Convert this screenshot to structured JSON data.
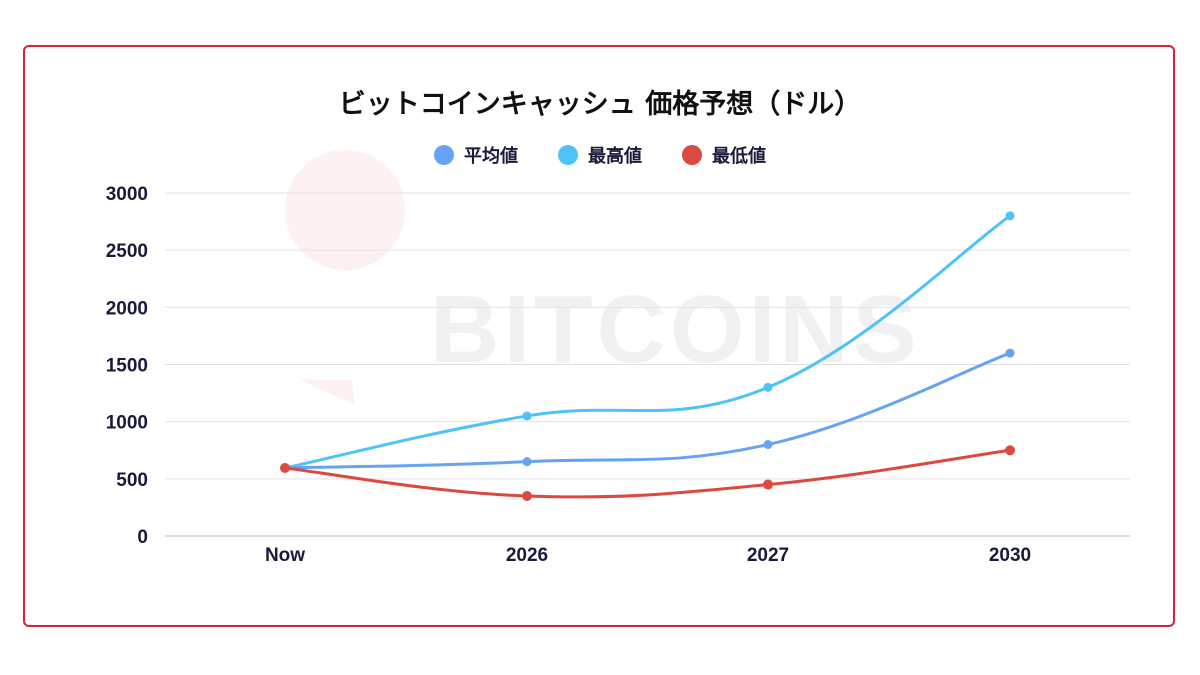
{
  "chart_data": {
    "type": "line",
    "title": "ビットコインキャッシュ 価格予想（ドル）",
    "categories": [
      "Now",
      "2026",
      "2027",
      "2030"
    ],
    "series": [
      {
        "name": "平均値",
        "color": "#67a3f3",
        "values": [
          595,
          650,
          800,
          1600
        ]
      },
      {
        "name": "最高値",
        "color": "#4ec3f7",
        "values": [
          595,
          1050,
          1300,
          2800
        ]
      },
      {
        "name": "最低値",
        "color": "#db4a40",
        "values": [
          595,
          350,
          450,
          750
        ]
      }
    ],
    "ylim": [
      0,
      3000
    ],
    "yticks": [
      "0",
      "500",
      "1000",
      "1500",
      "2000",
      "2500",
      "3000"
    ],
    "grid": true,
    "legend": "top",
    "xlabel": "",
    "ylabel": ""
  },
  "watermark": "99 BITCOINS",
  "frame_color": "#d9213a"
}
